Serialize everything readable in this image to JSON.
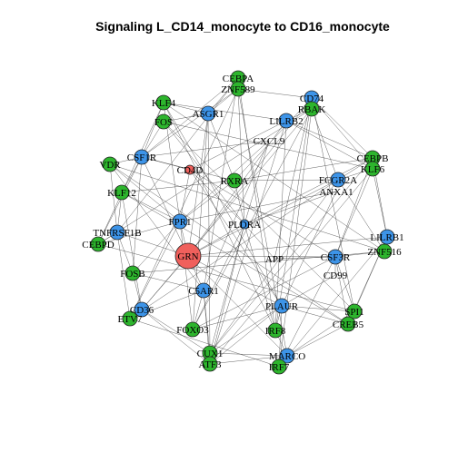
{
  "title": "Signaling L_CD14_monocyte to CD16_monocyte",
  "colors": {
    "green": "#2db52d",
    "blue": "#3d94e8",
    "red": "#f0605c",
    "edge": "#333333",
    "outline": "#222222"
  },
  "nodes": [
    {
      "id": "CEBPA",
      "label": "CEBPA",
      "color": "green",
      "size": "small"
    },
    {
      "id": "ZNF589",
      "label": "ZNF589",
      "color": "green",
      "size": "small"
    },
    {
      "id": "KLF4",
      "label": "KLF4",
      "color": "green",
      "size": "small"
    },
    {
      "id": "ASGR1",
      "label": "ASGR1",
      "color": "blue",
      "size": "small"
    },
    {
      "id": "FOS",
      "label": "FOS",
      "color": "green",
      "size": "small"
    },
    {
      "id": "CD74",
      "label": "CD74",
      "color": "blue",
      "size": "small"
    },
    {
      "id": "RBAK",
      "label": "RBAK",
      "color": "green",
      "size": "small"
    },
    {
      "id": "LILRB2",
      "label": "LILRB2",
      "color": "blue",
      "size": "small"
    },
    {
      "id": "CXCL9",
      "label": "CXCL9",
      "color": "none",
      "size": "small"
    },
    {
      "id": "CSF1R",
      "label": "CSF1R",
      "color": "blue",
      "size": "small"
    },
    {
      "id": "VDR",
      "label": "VDR",
      "color": "green",
      "size": "small"
    },
    {
      "id": "CD4D",
      "label": "CD4D",
      "color": "red",
      "size": "tiny"
    },
    {
      "id": "CEBPB",
      "label": "CEBPB",
      "color": "green",
      "size": "small"
    },
    {
      "id": "KLF6",
      "label": "KLF6",
      "color": "green",
      "size": "small"
    },
    {
      "id": "FCGR2A",
      "label": "FCGR2A",
      "color": "blue",
      "size": "small"
    },
    {
      "id": "ANXA1",
      "label": "ANXA1",
      "color": "none",
      "size": "small"
    },
    {
      "id": "RXRA",
      "label": "RXRA",
      "color": "green",
      "size": "small"
    },
    {
      "id": "KLF12",
      "label": "KLF12",
      "color": "green",
      "size": "small"
    },
    {
      "id": "FPR1",
      "label": "FPR1",
      "color": "blue",
      "size": "small"
    },
    {
      "id": "PLDRA",
      "label": "PLDRA",
      "color": "blue",
      "size": "tiny"
    },
    {
      "id": "TNFRSF1B",
      "label": "TNFRSF1B",
      "color": "blue",
      "size": "small"
    },
    {
      "id": "CEBPD",
      "label": "CEBPD",
      "color": "green",
      "size": "small"
    },
    {
      "id": "LILRB1",
      "label": "LILRB1",
      "color": "blue",
      "size": "small"
    },
    {
      "id": "ZNF516",
      "label": "ZNF516",
      "color": "green",
      "size": "small"
    },
    {
      "id": "GRN",
      "label": "GRN",
      "color": "red",
      "size": "large"
    },
    {
      "id": "APP",
      "label": "APP",
      "color": "none",
      "size": "small"
    },
    {
      "id": "CSF3R",
      "label": "CSF3R",
      "color": "blue",
      "size": "small"
    },
    {
      "id": "FOSB",
      "label": "FOSB",
      "color": "green",
      "size": "small"
    },
    {
      "id": "CD99",
      "label": "CD99",
      "color": "none",
      "size": "small"
    },
    {
      "id": "C5AR1",
      "label": "C5AR1",
      "color": "blue",
      "size": "small"
    },
    {
      "id": "CD36",
      "label": "CD36",
      "color": "blue",
      "size": "small"
    },
    {
      "id": "ETV7",
      "label": "ETV7",
      "color": "green",
      "size": "small"
    },
    {
      "id": "PLAUR",
      "label": "PLAUR",
      "color": "blue",
      "size": "small"
    },
    {
      "id": "SPI1",
      "label": "SPI1",
      "color": "green",
      "size": "small"
    },
    {
      "id": "CREB5",
      "label": "CREB5",
      "color": "green",
      "size": "small"
    },
    {
      "id": "FOXO3",
      "label": "FOXO3",
      "color": "green",
      "size": "small"
    },
    {
      "id": "IRF8",
      "label": "IRF8",
      "color": "green",
      "size": "small"
    },
    {
      "id": "CUX1",
      "label": "CUX1",
      "color": "green",
      "size": "small"
    },
    {
      "id": "ATF3",
      "label": "ATF3",
      "color": "green",
      "size": "small"
    },
    {
      "id": "MARCO",
      "label": "MARCO",
      "color": "blue",
      "size": "small"
    },
    {
      "id": "IRF7",
      "label": "IRF7",
      "color": "green",
      "size": "small"
    }
  ],
  "edges": [
    [
      "GRN",
      "CSF1R"
    ],
    [
      "GRN",
      "FPR1"
    ],
    [
      "GRN",
      "TNFRSF1B"
    ],
    [
      "GRN",
      "C5AR1"
    ],
    [
      "GRN",
      "CD36"
    ],
    [
      "GRN",
      "PLAUR"
    ],
    [
      "GRN",
      "CSF3R"
    ],
    [
      "GRN",
      "LILRB2"
    ],
    [
      "GRN",
      "ASGR1"
    ],
    [
      "GRN",
      "CD74"
    ],
    [
      "GRN",
      "FCGR2A"
    ],
    [
      "GRN",
      "LILRB1"
    ],
    [
      "GRN",
      "MARCO"
    ],
    [
      "GRN",
      "PLDRA"
    ],
    [
      "CD4D",
      "CSF1R"
    ],
    [
      "CD4D",
      "FPR1"
    ],
    [
      "CD4D",
      "PLDRA"
    ],
    [
      "CD4D",
      "CSF3R"
    ],
    [
      "CD4D",
      "LILRB2"
    ],
    [
      "CD4D",
      "PLAUR"
    ],
    [
      "CXCL9",
      "CSF1R"
    ],
    [
      "CXCL9",
      "FPR1"
    ],
    [
      "CXCL9",
      "PLDRA"
    ],
    [
      "CXCL9",
      "C5AR1"
    ],
    [
      "ANXA1",
      "FPR1"
    ],
    [
      "ANXA1",
      "PLDRA"
    ],
    [
      "ANXA1",
      "PLAUR"
    ],
    [
      "APP",
      "CD74"
    ],
    [
      "APP",
      "PLDRA"
    ],
    [
      "APP",
      "CSF3R"
    ],
    [
      "CD99",
      "CSF3R"
    ],
    [
      "CD99",
      "PLAUR"
    ],
    [
      "CSF1R",
      "CEBPA"
    ],
    [
      "CSF1R",
      "ZNF589"
    ],
    [
      "CSF1R",
      "KLF4"
    ],
    [
      "CSF1R",
      "FOS"
    ],
    [
      "CSF1R",
      "VDR"
    ],
    [
      "CSF1R",
      "KLF12"
    ],
    [
      "CSF1R",
      "RXRA"
    ],
    [
      "CSF1R",
      "CEBPD"
    ],
    [
      "CSF1R",
      "FOSB"
    ],
    [
      "ASGR1",
      "CEBPA"
    ],
    [
      "ASGR1",
      "ZNF589"
    ],
    [
      "ASGR1",
      "KLF4"
    ],
    [
      "ASGR1",
      "FOS"
    ],
    [
      "ASGR1",
      "RXRA"
    ],
    [
      "ASGR1",
      "FOXO3"
    ],
    [
      "ASGR1",
      "CUX1"
    ],
    [
      "CD74",
      "RBAK"
    ],
    [
      "CD74",
      "CEBPB"
    ],
    [
      "CD74",
      "KLF6"
    ],
    [
      "CD74",
      "ZNF589"
    ],
    [
      "CD74",
      "RXRA"
    ],
    [
      "CD74",
      "IRF8"
    ],
    [
      "CD74",
      "SPI1"
    ],
    [
      "LILRB2",
      "RBAK"
    ],
    [
      "LILRB2",
      "CEBPB"
    ],
    [
      "LILRB2",
      "KLF6"
    ],
    [
      "LILRB2",
      "KLF4"
    ],
    [
      "LILRB2",
      "ATF3"
    ],
    [
      "LILRB2",
      "IRF8"
    ],
    [
      "FCGR2A",
      "CEBPB"
    ],
    [
      "FCGR2A",
      "KLF6"
    ],
    [
      "FCGR2A",
      "RBAK"
    ],
    [
      "FCGR2A",
      "RXRA"
    ],
    [
      "FCGR2A",
      "ETV7"
    ],
    [
      "FCGR2A",
      "CUX1"
    ],
    [
      "FCGR2A",
      "ZNF516"
    ],
    [
      "FPR1",
      "VDR"
    ],
    [
      "FPR1",
      "KLF12"
    ],
    [
      "FPR1",
      "CEBPD"
    ],
    [
      "FPR1",
      "FOSB"
    ],
    [
      "FPR1",
      "ETV7"
    ],
    [
      "FPR1",
      "FOXO3"
    ],
    [
      "FPR1",
      "RXRA"
    ],
    [
      "FPR1",
      "KLF4"
    ],
    [
      "TNFRSF1B",
      "CEBPD"
    ],
    [
      "TNFRSF1B",
      "KLF12"
    ],
    [
      "TNFRSF1B",
      "FOSB"
    ],
    [
      "TNFRSF1B",
      "VDR"
    ],
    [
      "TNFRSF1B",
      "ETV7"
    ],
    [
      "TNFRSF1B",
      "CEBPA"
    ],
    [
      "PLDRA",
      "RXRA"
    ],
    [
      "PLDRA",
      "FOXO3"
    ],
    [
      "PLDRA",
      "CUX1"
    ],
    [
      "PLDRA",
      "ATF3"
    ],
    [
      "PLDRA",
      "IRF8"
    ],
    [
      "PLDRA",
      "ZNF589"
    ],
    [
      "PLDRA",
      "CEBPB"
    ],
    [
      "PLDRA",
      "FOS"
    ],
    [
      "LILRB1",
      "ZNF516"
    ],
    [
      "LILRB1",
      "SPI1"
    ],
    [
      "LILRB1",
      "CREB5"
    ],
    [
      "LILRB1",
      "KLF6"
    ],
    [
      "LILRB1",
      "CEBPB"
    ],
    [
      "LILRB1",
      "IRF7"
    ],
    [
      "CSF3R",
      "ZNF516"
    ],
    [
      "CSF3R",
      "SPI1"
    ],
    [
      "CSF3R",
      "CREB5"
    ],
    [
      "CSF3R",
      "IRF7"
    ],
    [
      "CSF3R",
      "CEBPB"
    ],
    [
      "CSF3R",
      "KLF6"
    ],
    [
      "CSF3R",
      "FOXO3"
    ],
    [
      "C5AR1",
      "FOSB"
    ],
    [
      "C5AR1",
      "ETV7"
    ],
    [
      "C5AR1",
      "FOXO3"
    ],
    [
      "C5AR1",
      "CUX1"
    ],
    [
      "C5AR1",
      "ATF3"
    ],
    [
      "C5AR1",
      "VDR"
    ],
    [
      "C5AR1",
      "CEBPA"
    ],
    [
      "CD36",
      "FOSB"
    ],
    [
      "CD36",
      "ETV7"
    ],
    [
      "CD36",
      "CUX1"
    ],
    [
      "CD36",
      "ATF3"
    ],
    [
      "CD36",
      "KLF12"
    ],
    [
      "CD36",
      "RBAK"
    ],
    [
      "PLAUR",
      "IRF8"
    ],
    [
      "PLAUR",
      "CREB5"
    ],
    [
      "PLAUR",
      "SPI1"
    ],
    [
      "PLAUR",
      "CUX1"
    ],
    [
      "PLAUR",
      "ATF3"
    ],
    [
      "PLAUR",
      "IRF7"
    ],
    [
      "PLAUR",
      "FOXO3"
    ],
    [
      "PLAUR",
      "KLF4"
    ],
    [
      "MARCO",
      "IRF7"
    ],
    [
      "MARCO",
      "IRF8"
    ],
    [
      "MARCO",
      "CREB5"
    ],
    [
      "MARCO",
      "CUX1"
    ],
    [
      "MARCO",
      "ATF3"
    ],
    [
      "MARCO",
      "SPI1"
    ],
    [
      "MARCO",
      "ZNF589"
    ],
    [
      "RXRA",
      "CEBPB"
    ],
    [
      "RXRA",
      "KLF12"
    ],
    [
      "KLF4",
      "CEBPD"
    ],
    [
      "FOS",
      "KLF6"
    ],
    [
      "CEBPA",
      "IRF8"
    ],
    [
      "ZNF589",
      "ETV7"
    ],
    [
      "VDR",
      "ZNF516"
    ],
    [
      "KLF12",
      "CREB5"
    ],
    [
      "CEBPD",
      "SPI1"
    ],
    [
      "FOSB",
      "ZNF516"
    ],
    [
      "ETV7",
      "IRF7"
    ],
    [
      "FOXO3",
      "RBAK"
    ],
    [
      "CUX1",
      "CEBPB"
    ],
    [
      "ATF3",
      "KLF6"
    ],
    [
      "IRF8",
      "KLF4"
    ],
    [
      "IRF7",
      "RBAK"
    ],
    [
      "SPI1",
      "FOS"
    ],
    [
      "CREB5",
      "VDR"
    ],
    [
      "ZNF516",
      "KLF4"
    ],
    [
      "RBAK",
      "CEBPD"
    ]
  ]
}
